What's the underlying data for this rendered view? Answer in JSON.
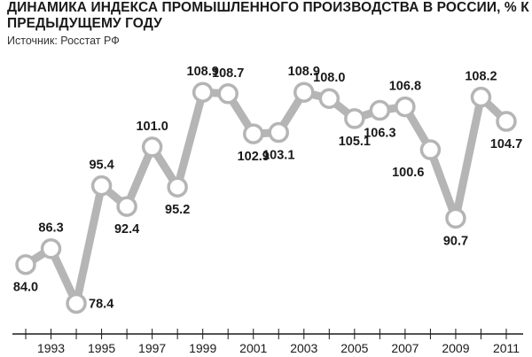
{
  "title": "ДИНАМИКА ИНДЕКСА ПРОМЫШЛЕННОГО ПРОИЗВОДСТВА В РОССИИ, % К ПРЕДЫДУЩЕМУ ГОДУ",
  "source": "Источник: Росстат РФ",
  "chart_data": {
    "type": "line",
    "title": "ДИНАМИКА ИНДЕКСА ПРОМЫШЛЕННОГО ПРОИЗВОДСТВА В РОССИИ, % К ПРЕДЫДУЩЕМУ ГОДУ",
    "x": [
      1992,
      1993,
      1994,
      1995,
      1996,
      1997,
      1998,
      1999,
      2000,
      2001,
      2002,
      2003,
      2004,
      2005,
      2006,
      2007,
      2008,
      2009,
      2010,
      2011
    ],
    "values": [
      84.0,
      86.3,
      78.4,
      95.4,
      92.4,
      101.0,
      95.2,
      108.9,
      108.7,
      102.9,
      103.1,
      108.9,
      108.0,
      105.1,
      106.3,
      106.8,
      100.6,
      90.7,
      108.2,
      104.7
    ],
    "labels": [
      "84.0",
      "86.3",
      "78.4",
      "95.4",
      "92.4",
      "101.0",
      "95.2",
      "108.9",
      "108.7",
      "102.9",
      "103.1",
      "108.9",
      "108.0",
      "105.1",
      "106.3",
      "106.8",
      "100.6",
      "90.7",
      "108.2",
      "104.7"
    ],
    "label_pos": [
      "below",
      "above",
      "right",
      "above",
      "below",
      "above",
      "below",
      "above",
      "above",
      "below",
      "below",
      "above",
      "above",
      "below",
      "below",
      "above",
      "below-left",
      "below",
      "above",
      "below"
    ],
    "tick_labels": [
      "1993",
      "1995",
      "1997",
      "1999",
      "2001",
      "2003",
      "2005",
      "2007",
      "2009",
      "2011"
    ],
    "ylim": [
      75,
      112
    ],
    "grid": false,
    "colors": {
      "line": "#b5b5b5",
      "marker_fill": "#ffffff",
      "marker_stroke": "#b5b5b5",
      "text": "#1a1a1a",
      "axis": "#1a1a1a"
    }
  }
}
